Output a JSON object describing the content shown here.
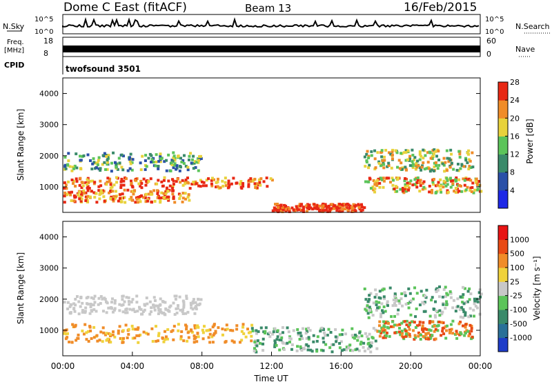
{
  "header": {
    "station": "Dome C East (fitACF)",
    "beam": "Beam 13",
    "date": "16/Feb/2015"
  },
  "status_panels": {
    "nsky_label": "N.Sky",
    "nsearch_label": "N.Search",
    "noise_ticks": [
      "10^5",
      "10^0"
    ],
    "freq_label": "Freq.",
    "freq_unit": "[MHz]",
    "freq_ticks": [
      "18",
      "8"
    ],
    "nave_label": "Nave",
    "nave_ticks": [
      "60",
      "0"
    ],
    "cpid_label": "CPID",
    "cpid_value": "twofsound 3501"
  },
  "chart_data": [
    {
      "type": "heatmap",
      "name": "power",
      "ylabel": "Slant Range [km]",
      "xlabel": "",
      "ylim": [
        180,
        4500
      ],
      "yticks": [
        1000,
        2000,
        3000,
        4000
      ],
      "colorbar": {
        "label": "Power [dB]",
        "ticks": [
          "4",
          "8",
          "12",
          "16",
          "20",
          "24",
          "28"
        ],
        "colors": [
          "#1e28e6",
          "#2a50a8",
          "#3a8a6a",
          "#5cc45a",
          "#e8d23c",
          "#f08c28",
          "#e82814"
        ]
      }
    },
    {
      "type": "heatmap",
      "name": "velocity",
      "ylabel": "Slant Range [km]",
      "xlabel": "Time UT",
      "ylim": [
        180,
        4500
      ],
      "yticks": [
        1000,
        2000,
        3000,
        4000
      ],
      "xticks": [
        "00:00",
        "04:00",
        "08:00",
        "12:00",
        "16:00",
        "20:00",
        "00:00"
      ],
      "colorbar": {
        "label": "Velocity [m s⁻¹]",
        "ticks": [
          "1000",
          "500",
          "100",
          "25",
          "-25",
          "-100",
          "-500",
          "-1000"
        ],
        "colors": [
          "#1e3cc8",
          "#2a7098",
          "#3a8a6a",
          "#5cc45a",
          "#c8c8c8",
          "#f0d23c",
          "#f08c28",
          "#e84a14",
          "#e81414"
        ]
      }
    }
  ]
}
